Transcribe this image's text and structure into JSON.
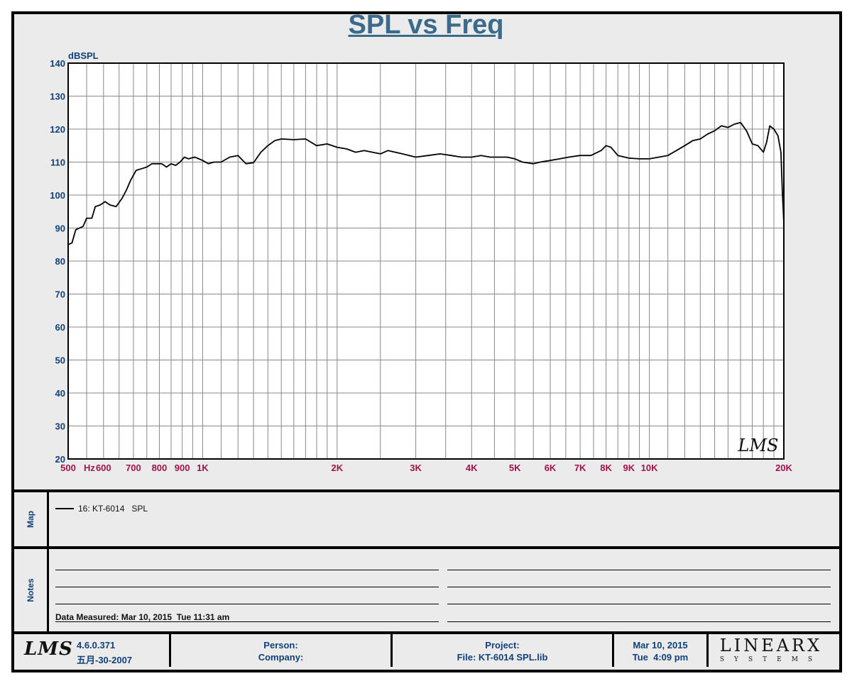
{
  "title": "SPL vs Freq",
  "chart_data": {
    "type": "line",
    "title": "SPL vs Freq",
    "ylabel": "dBSPL",
    "xlabel": "Hz",
    "x_scale": "log",
    "xlim": [
      500,
      20000
    ],
    "ylim": [
      20,
      140
    ],
    "y_ticks": [
      "20",
      "30",
      "40",
      "50",
      "60",
      "70",
      "80",
      "90",
      "100",
      "110",
      "120",
      "130",
      "140"
    ],
    "x_tick_labels": [
      {
        "value": 500,
        "label": "500"
      },
      {
        "value": 600,
        "label": "600"
      },
      {
        "value": 700,
        "label": "700"
      },
      {
        "value": 800,
        "label": "800"
      },
      {
        "value": 900,
        "label": "900"
      },
      {
        "value": 1000,
        "label": "1K"
      },
      {
        "value": 2000,
        "label": "2K"
      },
      {
        "value": 3000,
        "label": "3K"
      },
      {
        "value": 4000,
        "label": "4K"
      },
      {
        "value": 5000,
        "label": "5K"
      },
      {
        "value": 6000,
        "label": "6K"
      },
      {
        "value": 7000,
        "label": "7K"
      },
      {
        "value": 8000,
        "label": "8K"
      },
      {
        "value": 9000,
        "label": "9K"
      },
      {
        "value": 10000,
        "label": "10K"
      },
      {
        "value": 20000,
        "label": "20K"
      }
    ],
    "grid": true,
    "series": [
      {
        "name": "16: KT-6014   SPL",
        "color": "#000000",
        "points": [
          [
            500,
            85
          ],
          [
            510,
            85.5
          ],
          [
            520,
            89.5
          ],
          [
            540,
            90.5
          ],
          [
            550,
            93
          ],
          [
            565,
            93
          ],
          [
            575,
            96.5
          ],
          [
            590,
            97
          ],
          [
            605,
            98
          ],
          [
            620,
            97
          ],
          [
            640,
            96.5
          ],
          [
            660,
            99
          ],
          [
            675,
            101.5
          ],
          [
            690,
            104.5
          ],
          [
            710,
            107.5
          ],
          [
            730,
            108
          ],
          [
            750,
            108.5
          ],
          [
            770,
            109.5
          ],
          [
            790,
            109.5
          ],
          [
            810,
            109.5
          ],
          [
            830,
            108.5
          ],
          [
            850,
            109.5
          ],
          [
            870,
            109
          ],
          [
            890,
            110
          ],
          [
            910,
            111.5
          ],
          [
            930,
            111
          ],
          [
            960,
            111.5
          ],
          [
            1000,
            110.5
          ],
          [
            1030,
            109.5
          ],
          [
            1060,
            110
          ],
          [
            1100,
            110
          ],
          [
            1150,
            111.5
          ],
          [
            1200,
            112
          ],
          [
            1250,
            109.5
          ],
          [
            1300,
            109.8
          ],
          [
            1350,
            113
          ],
          [
            1400,
            115
          ],
          [
            1450,
            116.5
          ],
          [
            1500,
            117
          ],
          [
            1600,
            116.8
          ],
          [
            1700,
            117
          ],
          [
            1800,
            115
          ],
          [
            1900,
            115.5
          ],
          [
            2000,
            114.5
          ],
          [
            2100,
            114
          ],
          [
            2200,
            113
          ],
          [
            2300,
            113.5
          ],
          [
            2400,
            113
          ],
          [
            2500,
            112.5
          ],
          [
            2600,
            113.5
          ],
          [
            2700,
            113
          ],
          [
            2800,
            112.5
          ],
          [
            2900,
            112
          ],
          [
            3000,
            111.5
          ],
          [
            3200,
            112
          ],
          [
            3400,
            112.5
          ],
          [
            3600,
            112
          ],
          [
            3800,
            111.5
          ],
          [
            4000,
            111.5
          ],
          [
            4200,
            112
          ],
          [
            4400,
            111.5
          ],
          [
            4600,
            111.5
          ],
          [
            4800,
            111.5
          ],
          [
            5000,
            111
          ],
          [
            5200,
            110
          ],
          [
            5500,
            109.5
          ],
          [
            5700,
            110
          ],
          [
            6000,
            110.5
          ],
          [
            6300,
            111
          ],
          [
            6600,
            111.5
          ],
          [
            7000,
            112
          ],
          [
            7400,
            112
          ],
          [
            7800,
            113.5
          ],
          [
            8000,
            115
          ],
          [
            8200,
            114.5
          ],
          [
            8500,
            112
          ],
          [
            9000,
            111.2
          ],
          [
            9500,
            111
          ],
          [
            10000,
            111
          ],
          [
            10500,
            111.5
          ],
          [
            11000,
            112
          ],
          [
            11500,
            113.5
          ],
          [
            12000,
            115
          ],
          [
            12500,
            116.5
          ],
          [
            13000,
            117
          ],
          [
            13500,
            118.5
          ],
          [
            14000,
            119.5
          ],
          [
            14500,
            121
          ],
          [
            15000,
            120.5
          ],
          [
            15500,
            121.5
          ],
          [
            16000,
            122
          ],
          [
            16500,
            119.5
          ],
          [
            17000,
            115.5
          ],
          [
            17500,
            115
          ],
          [
            18000,
            113
          ],
          [
            18300,
            116
          ],
          [
            18600,
            121
          ],
          [
            19000,
            120
          ],
          [
            19400,
            118
          ],
          [
            19700,
            113
          ],
          [
            19850,
            101
          ],
          [
            20000,
            91.5
          ],
          [
            20150,
            92.5
          ],
          [
            20300,
            92.5
          ]
        ]
      }
    ]
  },
  "map_label": "Map",
  "notes_label": "Notes",
  "legend_text": "16: KT-6014   SPL",
  "data_measured": "Data Measured: Mar 10, 2015  Tue 11:31 am",
  "watermark": "LMS",
  "footer": {
    "logo": "LMS",
    "version": "4.6.0.371",
    "version_date": "五月-30-2007",
    "person_label": "Person:",
    "company_label": "Company:",
    "project_label": "Project:",
    "file_label": "File: KT-6014 SPL.lib",
    "date": "Mar 10, 2015",
    "time": "Tue  4:09 pm",
    "brand_main": "LINEARX",
    "brand_sub": "SYSTEMS"
  }
}
